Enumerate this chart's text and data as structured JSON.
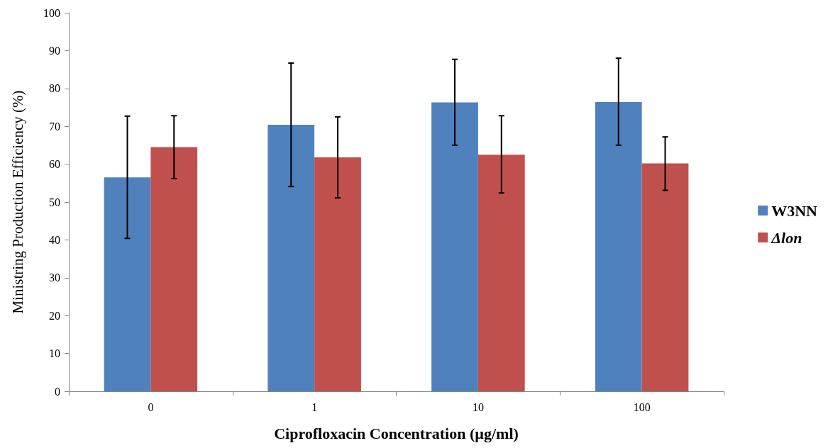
{
  "chart_data": {
    "type": "bar",
    "xlabel": "Ciprofloxacin Concentration (µg/ml)",
    "ylabel": "Ministring Production Efficiency (%)",
    "categories": [
      "0",
      "1",
      "10",
      "100"
    ],
    "series": [
      {
        "name": "W3NN",
        "color": "#4f81bd",
        "values": [
          56.5,
          70.4,
          76.3,
          76.4
        ],
        "errors": [
          [
            40.4,
            72.7
          ],
          [
            54.1,
            86.7
          ],
          [
            65.0,
            87.7
          ],
          [
            65.0,
            88.0
          ]
        ]
      },
      {
        "name": "Δlon",
        "color": "#c0504d",
        "values": [
          64.5,
          61.8,
          62.5,
          60.2
        ],
        "errors": [
          [
            56.2,
            72.8
          ],
          [
            51.1,
            72.5
          ],
          [
            52.4,
            72.8
          ],
          [
            53.1,
            67.2
          ]
        ]
      }
    ],
    "ylim": [
      0,
      100
    ],
    "yticks": [
      0,
      10,
      20,
      30,
      40,
      50,
      60,
      70,
      80,
      90,
      100
    ],
    "grid": false,
    "legend": "right"
  }
}
